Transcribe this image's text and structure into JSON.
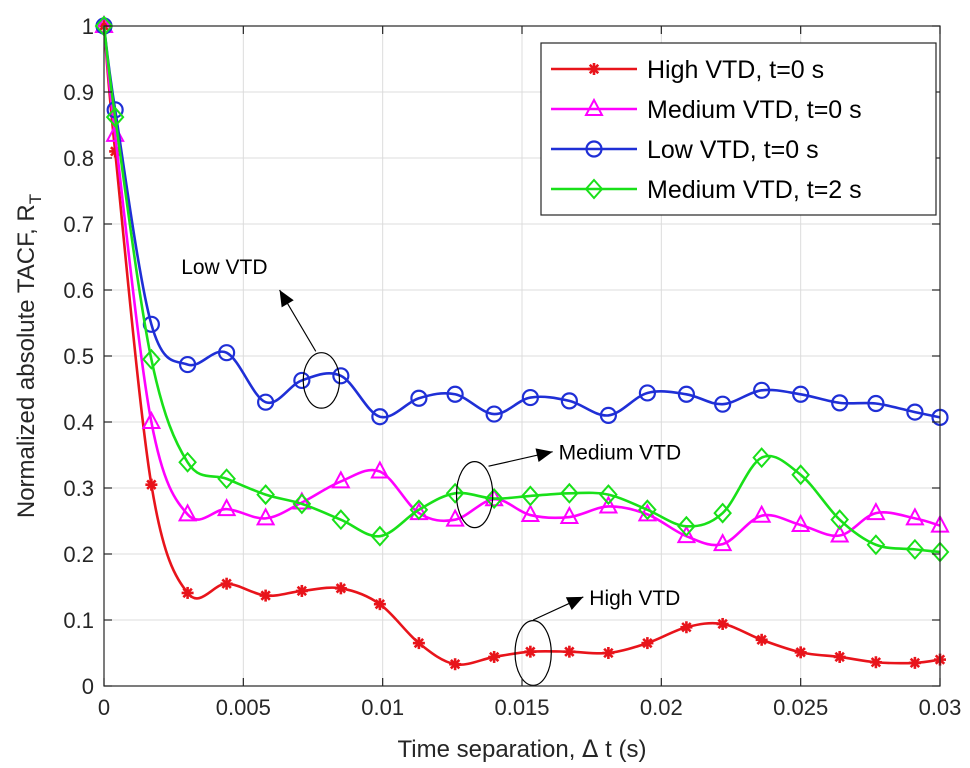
{
  "chart_data": {
    "type": "line",
    "xlabel_main": "Time separation, ",
    "xlabel_delta": "Δ",
    "xlabel_tail": " t (s)",
    "ylabel_main": "Normalized absolute TACF, R",
    "ylabel_sub": "T",
    "xlim": [
      0,
      0.03
    ],
    "ylim": [
      0,
      1
    ],
    "xticks": [
      0,
      0.005,
      0.01,
      0.015,
      0.02,
      0.025,
      0.03
    ],
    "xtick_labels": [
      "0",
      "0.005",
      "0.01",
      "0.015",
      "0.02",
      "0.025",
      "0.03"
    ],
    "yticks": [
      0,
      0.1,
      0.2,
      0.3,
      0.4,
      0.5,
      0.6,
      0.7,
      0.8,
      0.9,
      1
    ],
    "ytick_labels": [
      "0",
      "0.1",
      "0.2",
      "0.3",
      "0.4",
      "0.5",
      "0.6",
      "0.7",
      "0.8",
      "0.9",
      "1"
    ],
    "grid": true,
    "legend_position": "top-right",
    "series": [
      {
        "name": "High VTD, t=0 s",
        "color": "#e8141b",
        "marker": "asterisk",
        "x": [
          0,
          0.0004,
          0.0017,
          0.003,
          0.0044,
          0.0058,
          0.0071,
          0.0085,
          0.0099,
          0.0113,
          0.0126,
          0.014,
          0.0153,
          0.0167,
          0.0181,
          0.0195,
          0.0209,
          0.0222,
          0.0236,
          0.025,
          0.0264,
          0.0277,
          0.0291,
          0.03
        ],
        "y": [
          1.0,
          0.81,
          0.305,
          0.141,
          0.155,
          0.137,
          0.144,
          0.148,
          0.124,
          0.065,
          0.033,
          0.044,
          0.052,
          0.052,
          0.05,
          0.065,
          0.089,
          0.094,
          0.07,
          0.051,
          0.044,
          0.036,
          0.035,
          0.04
        ]
      },
      {
        "name": "Medium VTD, t=0 s",
        "color": "#ff00ff",
        "marker": "triangle",
        "x": [
          0,
          0.0004,
          0.0017,
          0.003,
          0.0044,
          0.0058,
          0.0071,
          0.0085,
          0.0099,
          0.0113,
          0.0126,
          0.014,
          0.0153,
          0.0167,
          0.0181,
          0.0195,
          0.0209,
          0.0222,
          0.0236,
          0.025,
          0.0264,
          0.0277,
          0.0291,
          0.03
        ],
        "y": [
          1.0,
          0.835,
          0.4,
          0.26,
          0.268,
          0.254,
          0.278,
          0.31,
          0.325,
          0.262,
          0.252,
          0.283,
          0.259,
          0.256,
          0.272,
          0.26,
          0.227,
          0.215,
          0.258,
          0.244,
          0.228,
          0.262,
          0.254,
          0.243
        ]
      },
      {
        "name": "Low VTD, t=0 s",
        "color": "#1f2fd6",
        "marker": "circle",
        "x": [
          0,
          0.0004,
          0.0017,
          0.003,
          0.0044,
          0.0058,
          0.0071,
          0.0085,
          0.0099,
          0.0113,
          0.0126,
          0.014,
          0.0153,
          0.0167,
          0.0181,
          0.0195,
          0.0209,
          0.0222,
          0.0236,
          0.025,
          0.0264,
          0.0277,
          0.0291,
          0.03
        ],
        "y": [
          1.0,
          0.873,
          0.548,
          0.487,
          0.505,
          0.43,
          0.463,
          0.47,
          0.408,
          0.436,
          0.442,
          0.412,
          0.437,
          0.432,
          0.41,
          0.444,
          0.442,
          0.427,
          0.448,
          0.442,
          0.429,
          0.428,
          0.415,
          0.407
        ]
      },
      {
        "name": "Medium VTD, t=2 s",
        "color": "#19e019",
        "marker": "diamond",
        "x": [
          0,
          0.0004,
          0.0017,
          0.003,
          0.0044,
          0.0058,
          0.0071,
          0.0085,
          0.0099,
          0.0113,
          0.0126,
          0.014,
          0.0153,
          0.0167,
          0.0181,
          0.0195,
          0.0209,
          0.0222,
          0.0236,
          0.025,
          0.0264,
          0.0277,
          0.0291,
          0.03
        ],
        "y": [
          1.0,
          0.862,
          0.495,
          0.339,
          0.314,
          0.29,
          0.276,
          0.252,
          0.227,
          0.267,
          0.292,
          0.284,
          0.288,
          0.292,
          0.29,
          0.267,
          0.242,
          0.262,
          0.346,
          0.32,
          0.252,
          0.214,
          0.207,
          0.203
        ]
      }
    ],
    "annotations": [
      {
        "text": "Low VTD",
        "ellipse_center": [
          0.0078,
          0.463
        ],
        "ellipse_half_width": 0.00065,
        "ellipse_half_height": 0.042,
        "arrow_from": [
          0.0076,
          0.507
        ],
        "arrow_to": [
          0.0063,
          0.6
        ]
      },
      {
        "text": "Medium VTD",
        "ellipse_center": [
          0.0133,
          0.29
        ],
        "ellipse_half_width": 0.00065,
        "ellipse_half_height": 0.05,
        "arrow_from": [
          0.0138,
          0.333
        ],
        "arrow_to": [
          0.0161,
          0.355
        ]
      },
      {
        "text": "High VTD",
        "ellipse_center": [
          0.0154,
          0.05
        ],
        "ellipse_half_width": 0.00065,
        "ellipse_half_height": 0.049,
        "arrow_from": [
          0.0154,
          0.1
        ],
        "arrow_to": [
          0.0172,
          0.135
        ]
      }
    ]
  }
}
